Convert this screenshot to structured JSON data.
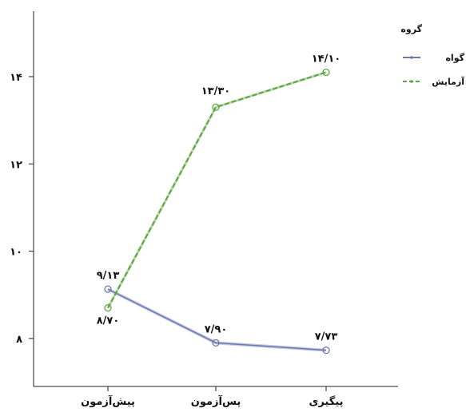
{
  "chart_data": {
    "type": "line",
    "categories": [
      "پیش‌آزمون",
      "پس‌آزمون",
      "پیگیری"
    ],
    "y_ticks": [
      "۸",
      "۱۰",
      "۱۲",
      "۱۴"
    ],
    "ylim": [
      6.9,
      15.5
    ],
    "legend": {
      "title": "گروه",
      "position": "top-right"
    },
    "series": [
      {
        "name": "گواه",
        "values": [
          9.13,
          7.9,
          7.73
        ],
        "labels": [
          "۹/۱۳",
          "۷/۹۰",
          "۷/۷۳"
        ],
        "color": "#6f79a8",
        "dash": "solid"
      },
      {
        "name": "آزمایش",
        "values": [
          8.7,
          13.3,
          14.1
        ],
        "labels": [
          "۸/۷۰",
          "۱۳/۳۰",
          "۱۴/۱۰"
        ],
        "color": "#5ea63f",
        "dash": "dashed"
      }
    ],
    "grid": false
  }
}
